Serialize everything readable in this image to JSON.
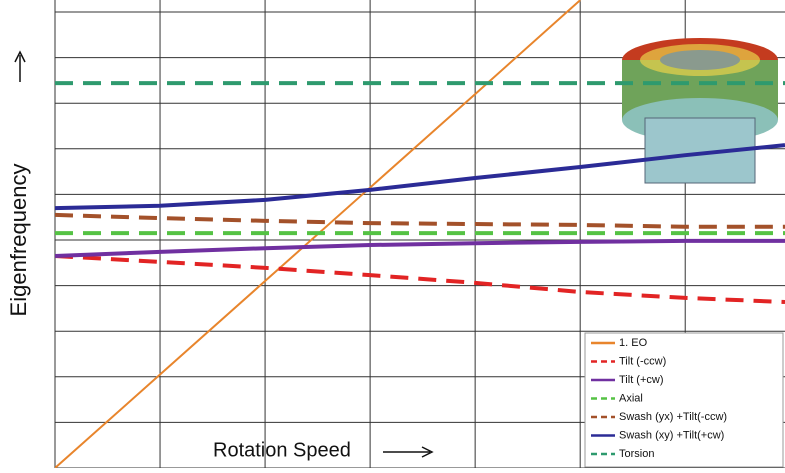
{
  "chart_data": {
    "type": "line",
    "x_label": "Rotation Speed",
    "y_label": "Eigenfrequency",
    "x": [
      0,
      1,
      2,
      3,
      4,
      5,
      6,
      6.95
    ],
    "xlim": [
      0,
      6.95
    ],
    "ylim": [
      0,
      10
    ],
    "xticks": [
      0,
      1,
      2,
      3,
      4,
      5,
      6
    ],
    "yticks": [
      0,
      1,
      2,
      3,
      4,
      5,
      6,
      7,
      8,
      9,
      10
    ],
    "grid": true,
    "tick_labels": false,
    "legend": "lower right",
    "series": [
      {
        "name": "1. EO",
        "color": "#e8852c",
        "dash": false,
        "values": [
          0,
          2.05,
          4.1,
          6.15,
          8.2,
          10.26,
          null,
          null
        ]
      },
      {
        "name": "Tilt (-ccw)",
        "color": "#e22424",
        "dash": true,
        "values": [
          4.65,
          4.52,
          4.39,
          4.23,
          4.06,
          3.86,
          3.73,
          3.64
        ]
      },
      {
        "name": "Tilt (+cw)",
        "color": "#7030a0",
        "dash": false,
        "values": [
          4.65,
          4.74,
          4.82,
          4.89,
          4.93,
          4.96,
          4.98,
          4.98
        ]
      },
      {
        "name": "Axial",
        "color": "#55c244",
        "dash": true,
        "values": [
          5.15,
          5.15,
          5.15,
          5.15,
          5.15,
          5.15,
          5.15,
          5.15
        ]
      },
      {
        "name": "Swash (yx) +Tilt(-ccw)",
        "color": "#a3512a",
        "dash": true,
        "values": [
          5.55,
          5.48,
          5.42,
          5.37,
          5.35,
          5.33,
          5.29,
          5.29
        ]
      },
      {
        "name": "Swash (xy) +Tilt(+cw)",
        "color": "#2b2b96",
        "dash": false,
        "values": [
          5.7,
          5.75,
          5.88,
          6.1,
          6.36,
          6.6,
          6.86,
          7.08
        ]
      },
      {
        "name": "Torsion",
        "color": "#2e9a6e",
        "dash": true,
        "values": [
          8.44,
          8.44,
          8.44,
          8.44,
          8.44,
          8.44,
          8.44,
          8.44
        ]
      }
    ]
  }
}
